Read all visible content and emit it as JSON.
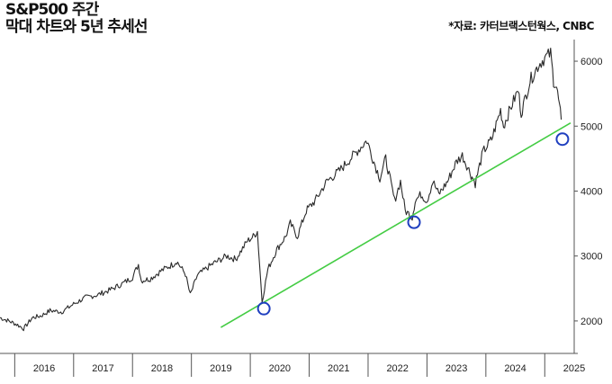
{
  "header": {
    "title_line1": "S&P500 주간",
    "title_line2": "막대 차트와 5년 추세선",
    "source": "*자료: 카터브랙스턴웍스, CNBC"
  },
  "colors": {
    "price": "#2a2a2a",
    "trendline": "#44cc44",
    "marker": "#1f3fbf",
    "axis": "#555555"
  },
  "chart_data": {
    "type": "line",
    "title": "S&P500 주간",
    "xlabel": "",
    "ylabel": "",
    "x_ticks": [
      "2016",
      "2017",
      "2018",
      "2019",
      "2020",
      "2021",
      "2022",
      "2023",
      "2024",
      "2025"
    ],
    "y_ticks": [
      2000,
      3000,
      4000,
      5000,
      6000
    ],
    "xlim": [
      2015.75,
      2025.5
    ],
    "ylim": [
      1500,
      6250
    ],
    "y_axis_position": "right",
    "grid": false,
    "series": [
      {
        "x": [
          2015.75,
          2015.9,
          2016.05,
          2016.15,
          2016.3,
          2016.45,
          2016.6,
          2016.8,
          2016.9,
          2017.0,
          2017.2,
          2017.4,
          2017.6,
          2017.8,
          2018.0,
          2018.1,
          2018.15,
          2018.3,
          2018.5,
          2018.7,
          2018.75,
          2018.9,
          2018.98,
          2019.1,
          2019.3,
          2019.4,
          2019.5,
          2019.6,
          2019.75,
          2019.95,
          2020.05,
          2020.12,
          2020.2,
          2020.3,
          2020.45,
          2020.6,
          2020.68,
          2020.8,
          2020.95,
          2021.1,
          2021.3,
          2021.5,
          2021.7,
          2021.8,
          2021.98,
          2022.1,
          2022.2,
          2022.3,
          2022.45,
          2022.55,
          2022.63,
          2022.75,
          2022.8,
          2022.9,
          2023.0,
          2023.1,
          2023.2,
          2023.35,
          2023.5,
          2023.6,
          2023.75,
          2023.82,
          2023.95,
          2024.1,
          2024.25,
          2024.3,
          2024.45,
          2024.55,
          2024.6,
          2024.75,
          2024.9,
          2025.0,
          2025.1,
          2025.15,
          2025.2,
          2025.25,
          2025.28
        ],
        "y": [
          2050,
          2000,
          1940,
          1880,
          2050,
          2080,
          2160,
          2140,
          2200,
          2260,
          2360,
          2400,
          2470,
          2560,
          2670,
          2870,
          2620,
          2650,
          2780,
          2880,
          2920,
          2720,
          2400,
          2700,
          2840,
          2900,
          2950,
          3000,
          2950,
          3230,
          3300,
          3380,
          2300,
          2800,
          3100,
          3300,
          3500,
          3300,
          3700,
          3850,
          4150,
          4300,
          4500,
          4600,
          4780,
          4450,
          4200,
          4500,
          3850,
          4150,
          3700,
          3600,
          3850,
          3950,
          3850,
          4150,
          3950,
          4150,
          4450,
          4550,
          4250,
          4120,
          4600,
          4800,
          5250,
          5000,
          5350,
          5550,
          5200,
          5700,
          5950,
          6050,
          6120,
          5700,
          5600,
          5300,
          5100
        ]
      },
      {
        "name": "5년 추세선",
        "x": [
          2019.5,
          2025.5
        ],
        "y": [
          1900,
          5050
        ]
      }
    ],
    "annotations": [
      {
        "type": "circle",
        "x": 2020.23,
        "y": 2190
      },
      {
        "type": "circle",
        "x": 2022.78,
        "y": 3520
      },
      {
        "type": "circle",
        "x": 2025.3,
        "y": 4800
      }
    ]
  }
}
